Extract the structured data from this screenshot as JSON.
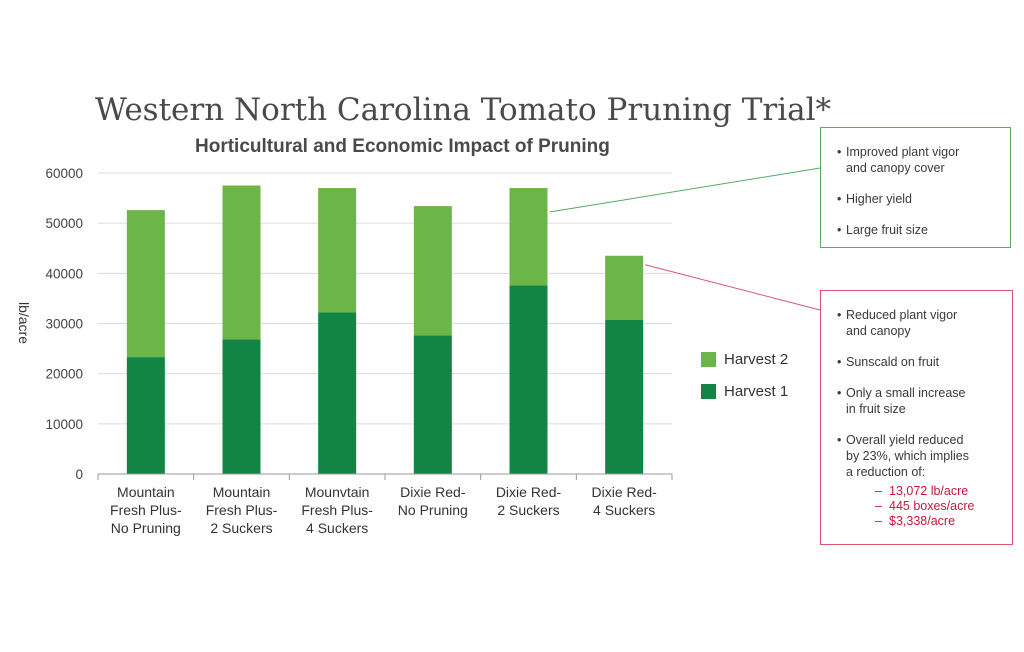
{
  "chart_data": {
    "type": "bar",
    "stacked": true,
    "title": "Western North Carolina Tomato Pruning Trial*",
    "subtitle": "Horticultural and Economic Impact of Pruning",
    "ylabel": "lb/acre",
    "xlabel": "",
    "ylim": [
      0,
      60000
    ],
    "yticks": [
      0,
      10000,
      20000,
      30000,
      40000,
      50000,
      60000
    ],
    "grid": true,
    "legend_placement": "right",
    "categories": [
      [
        "Mountain",
        "Fresh Plus-",
        "No Pruning"
      ],
      [
        "Mountain",
        "Fresh Plus-",
        "2 Suckers"
      ],
      [
        "Mounvtain",
        "Fresh Plus-",
        "4 Suckers"
      ],
      [
        "Dixie Red-",
        "No Pruning"
      ],
      [
        "Dixie Red-",
        "2 Suckers"
      ],
      [
        "Dixie Red-",
        "4 Suckers"
      ]
    ],
    "series": [
      {
        "name": "Harvest 1",
        "color": "#128544",
        "values": [
          23300,
          26800,
          32200,
          27600,
          37600,
          30700
        ]
      },
      {
        "name": "Harvest 2",
        "color": "#6cb548",
        "values": [
          29300,
          30700,
          24800,
          25800,
          19400,
          12800
        ]
      }
    ],
    "legend_order": [
      "Harvest 2",
      "Harvest 1"
    ]
  },
  "callouts": {
    "positive": {
      "color": "#5aa86a",
      "points_to_category": 4,
      "items": [
        [
          "Improved plant vigor",
          "and canopy cover"
        ],
        [
          "Higher yield"
        ],
        [
          "Large fruit size"
        ]
      ]
    },
    "negative": {
      "color": "#d8576e",
      "points_to_category": 5,
      "items": [
        [
          "Reduced plant vigor",
          "and canopy"
        ],
        [
          "Sunscald on fruit"
        ],
        [
          "Only a small increase",
          "in fruit size"
        ],
        [
          "Overall yield reduced",
          "by 23%, which implies",
          "a reduction of:"
        ]
      ],
      "reductions": [
        "13,072 lb/acre",
        "445 boxes/acre",
        "$3,338/acre"
      ],
      "reduction_color": "#c8183c"
    }
  },
  "bullet": "•",
  "dash": "–"
}
